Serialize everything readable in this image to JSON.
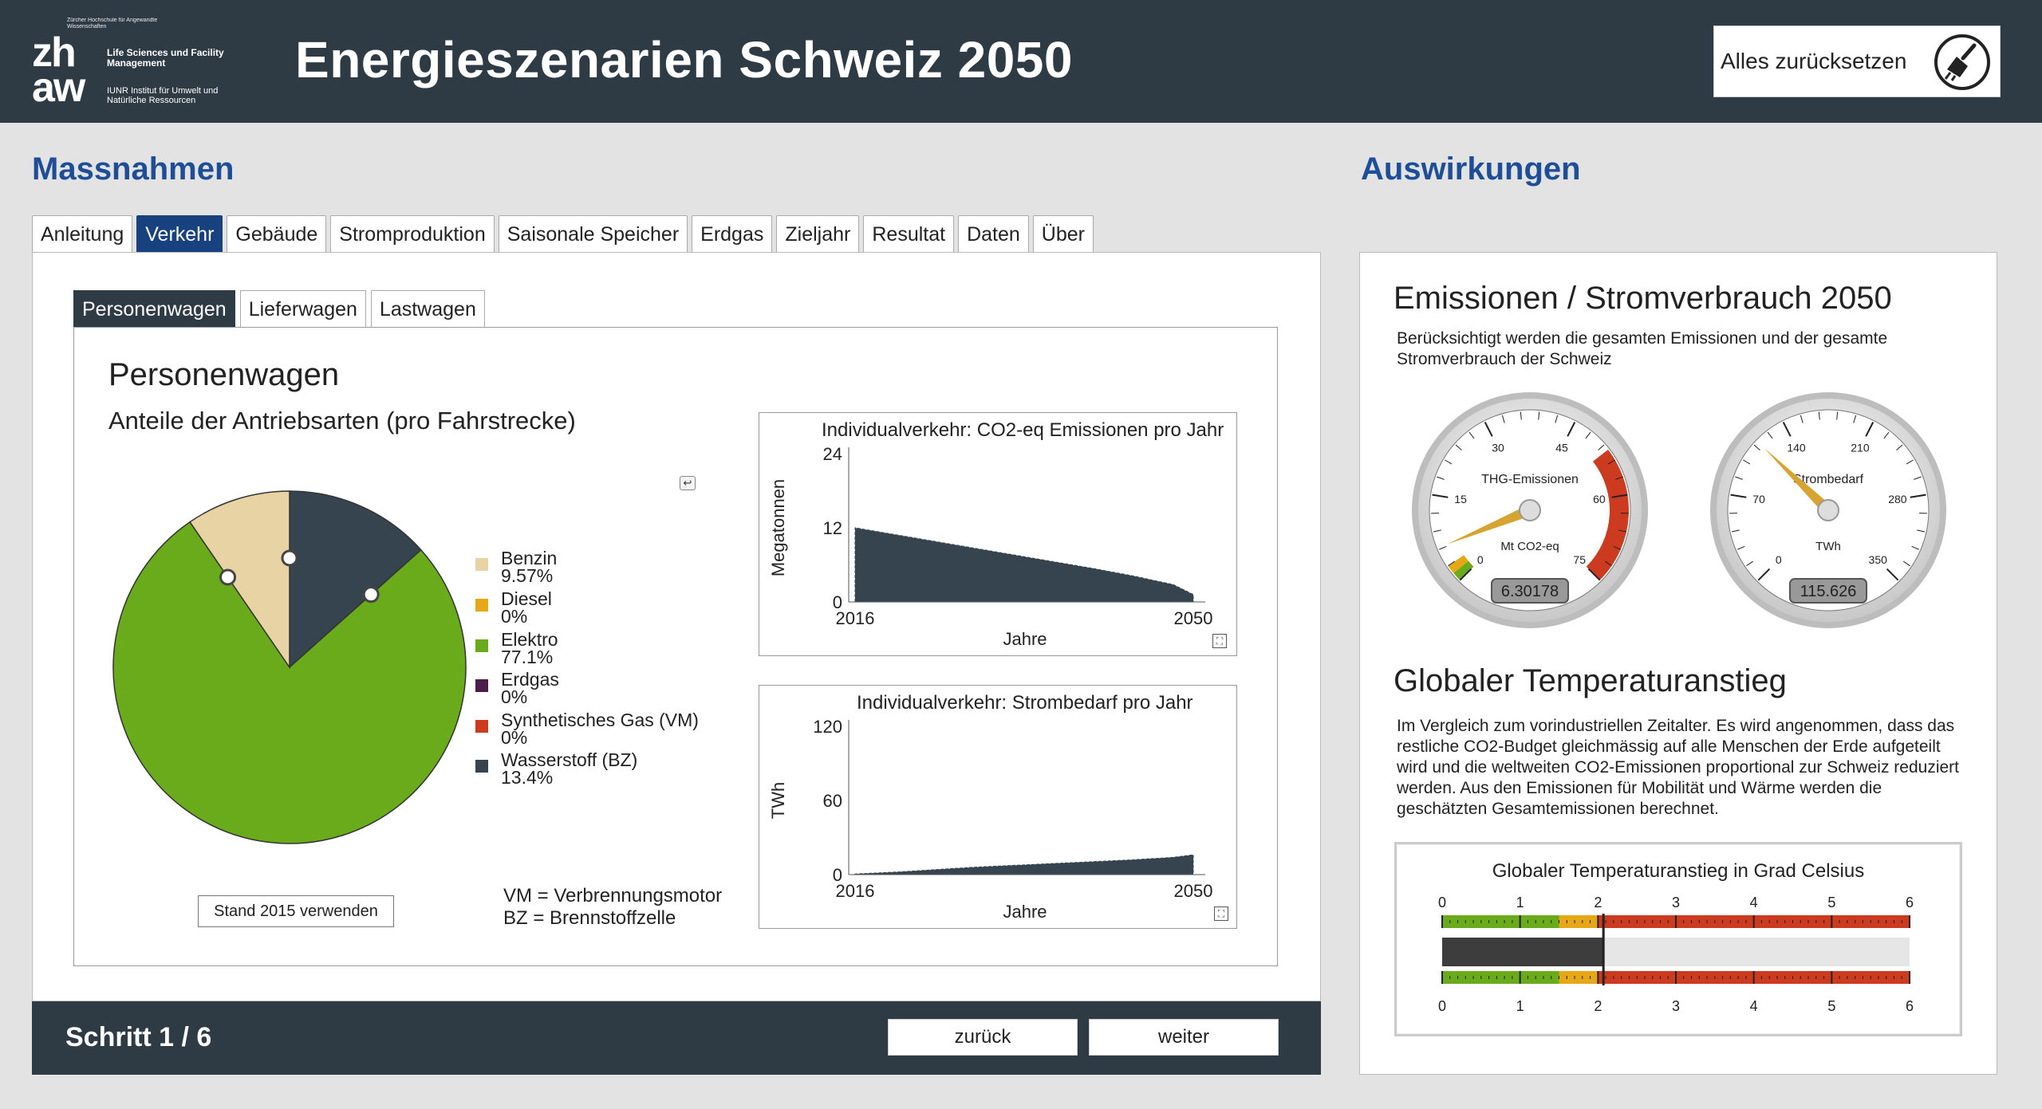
{
  "header": {
    "logo": {
      "tiny_text": "Zürcher Hochschule für Angewandte Wissenschaften",
      "mark_top": "zh",
      "mark_bottom": "aw",
      "line1": "Life Sciences und Facility Management",
      "line2": "IUNR Institut für Umwelt und Natürliche Ressourcen"
    },
    "title": "Energieszenarien Schweiz 2050",
    "reset_label": "Alles zurücksetzen",
    "reset_icon": "broom-icon"
  },
  "left": {
    "section_title": "Massnahmen",
    "tabs": [
      {
        "label": "Anleitung",
        "active": false
      },
      {
        "label": "Verkehr",
        "active": true
      },
      {
        "label": "Gebäude",
        "active": false
      },
      {
        "label": "Stromproduktion",
        "active": false
      },
      {
        "label": "Saisonale Speicher",
        "active": false
      },
      {
        "label": "Erdgas",
        "active": false
      },
      {
        "label": "Zieljahr",
        "active": false
      },
      {
        "label": "Resultat",
        "active": false
      },
      {
        "label": "Daten",
        "active": false
      },
      {
        "label": "Über",
        "active": false
      }
    ],
    "subtabs": [
      {
        "label": "Personenwagen",
        "active": true
      },
      {
        "label": "Lieferwagen",
        "active": false
      },
      {
        "label": "Lastwagen",
        "active": false
      }
    ],
    "content_title": "Personenwagen",
    "content_subtitle": "Anteile der Antriebsarten (pro Fahrstrecke)",
    "stand_button": "Stand 2015 verwenden",
    "abbr1": "VM = Verbrennungsmotor",
    "abbr2": "BZ = Brennstoffzelle",
    "footer": {
      "step": "Schritt 1 / 6",
      "back": "zurück",
      "next": "weiter"
    }
  },
  "right": {
    "section_title": "Auswirkungen",
    "gauges_title": "Emissionen / Stromverbrauch 2050",
    "gauges_text": "Berücksichtigt werden die gesamten Emissionen und der gesamte Stromverbrauch der Schweiz",
    "gauge1": {
      "label": "THG-Emissionen",
      "unit": "Mt CO2-eq",
      "value": 6.30178,
      "value_text": "6.30178",
      "max": 75,
      "ticks": [
        "0",
        "15",
        "30",
        "45",
        "60",
        "75"
      ]
    },
    "gauge2": {
      "label": "Strombedarf",
      "unit": "TWh",
      "value": 115.626,
      "value_text": "115.626",
      "max": 350,
      "ticks": [
        "0",
        "70",
        "140",
        "210",
        "280",
        "350"
      ]
    },
    "temp_title": "Globaler Temperaturanstieg",
    "temp_text": "Im Vergleich zum vorindustriellen Zeitalter. Es wird angenommen, dass das restliche CO2-Budget gleichmässig auf alle Menschen der Erde aufgeteilt wird und die weltweiten CO2-Emissionen proportional zur Schweiz reduziert werden. Aus den Emissionen für Mobilität und Wärme werden die geschätzten Gesamtemissionen berechnet.",
    "temp_chart_title": "Globaler Temperaturanstieg in Grad Celsius",
    "temp_value": 2.07,
    "temp_ticks": [
      "0",
      "1",
      "2",
      "3",
      "4",
      "5",
      "6"
    ]
  },
  "chart_data": [
    {
      "type": "pie",
      "title": "Anteile der Antriebsarten (pro Fahrstrecke)",
      "series": [
        {
          "name": "Benzin",
          "value": 9.57,
          "label": "9.57%",
          "color": "#e8d3a5"
        },
        {
          "name": "Diesel",
          "value": 0,
          "label": "0%",
          "color": "#e6a817"
        },
        {
          "name": "Elektro",
          "value": 77.1,
          "label": "77.1%",
          "color": "#6aab1c"
        },
        {
          "name": "Erdgas",
          "value": 0,
          "label": "0%",
          "color": "#4b1d4a"
        },
        {
          "name": "Synthetisches Gas (VM)",
          "value": 0,
          "label": "0%",
          "color": "#cc3a1f"
        },
        {
          "name": "Wasserstoff (BZ)",
          "value": 13.4,
          "label": "13.4%",
          "color": "#36444f"
        }
      ],
      "legend": "right"
    },
    {
      "type": "area",
      "title": "Individualverkehr: CO2-eq Emissionen pro Jahr",
      "xlabel": "Jahre",
      "ylabel": "Megatonnen",
      "x": [
        2016,
        2020,
        2024,
        2028,
        2032,
        2036,
        2040,
        2044,
        2048,
        2050
      ],
      "values": [
        12,
        10.9,
        9.8,
        8.7,
        7.6,
        6.5,
        5.4,
        4.2,
        2.8,
        1.2
      ],
      "xticks": [
        "2016",
        "2050"
      ],
      "yticks": [
        "0",
        "12",
        "24"
      ],
      "ylim": [
        0,
        24
      ],
      "color": "#36444f"
    },
    {
      "type": "area",
      "title": "Individualverkehr: Strombedarf pro Jahr",
      "xlabel": "Jahre",
      "ylabel": "TWh",
      "x": [
        2016,
        2020,
        2024,
        2028,
        2032,
        2036,
        2040,
        2044,
        2048,
        2050
      ],
      "values": [
        0.5,
        2,
        4,
        6,
        7.5,
        9,
        10.5,
        12,
        14,
        16
      ],
      "xticks": [
        "2016",
        "2050"
      ],
      "yticks": [
        "0",
        "60",
        "120"
      ],
      "ylim": [
        0,
        120
      ],
      "color": "#36444f"
    }
  ]
}
